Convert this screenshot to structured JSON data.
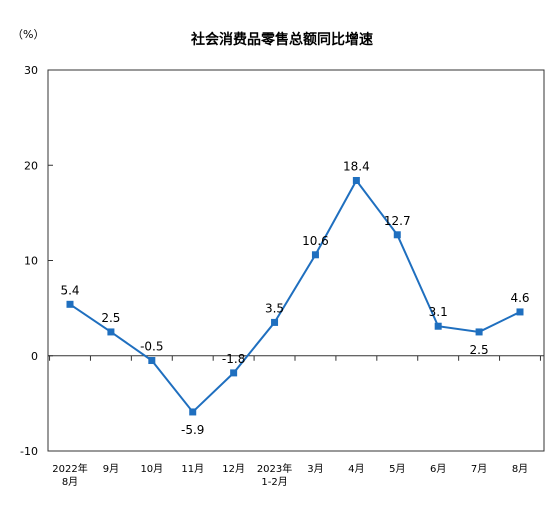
{
  "chart_data": {
    "type": "line",
    "title": "社会消费品零售总额同比增速",
    "unit": "（%）",
    "ylim": [
      -10,
      30
    ],
    "yticks": [
      "30",
      "20",
      "10",
      "0",
      "-10"
    ],
    "categories": [
      [
        "2022年",
        "8月"
      ],
      [
        "9月"
      ],
      [
        "10月"
      ],
      [
        "11月"
      ],
      [
        "12月"
      ],
      [
        "2023年",
        "1-2月"
      ],
      [
        "3月"
      ],
      [
        "4月"
      ],
      [
        "5月"
      ],
      [
        "6月"
      ],
      [
        "7月"
      ],
      [
        "8月"
      ]
    ],
    "series": [
      {
        "values": [
          5.4,
          2.5,
          -0.5,
          -5.9,
          -1.8,
          3.5,
          10.6,
          18.4,
          12.7,
          3.1,
          2.5,
          4.6
        ],
        "labels": [
          "5.4",
          "2.5",
          "-0.5",
          "-5.9",
          "-1.8",
          "3.5",
          "10.6",
          "18.4",
          "12.7",
          "3.1",
          "2.5",
          "4.6"
        ],
        "color": "#1f6fbf"
      }
    ],
    "grid": false,
    "legend": "none"
  }
}
